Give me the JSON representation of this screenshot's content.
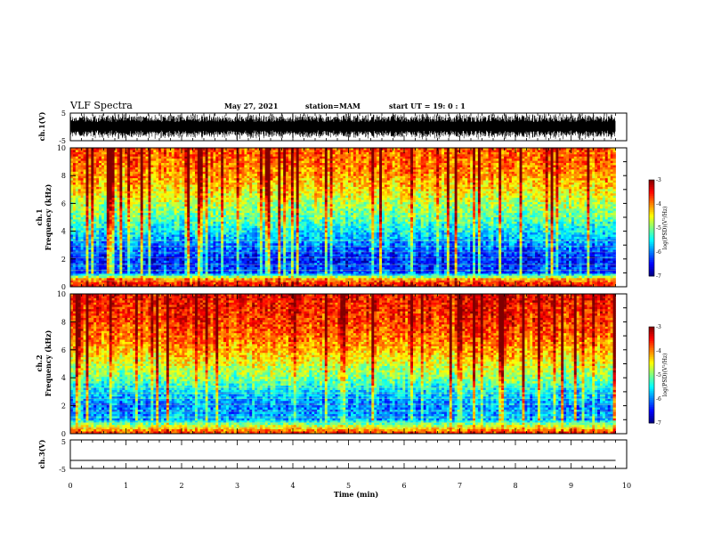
{
  "header": {
    "title": "VLF Spectra",
    "date": "May 27, 2021",
    "station": "station=MAM",
    "start": "start UT =  19: 0 : 1"
  },
  "chart_data": [
    {
      "type": "line",
      "panel": "ch1-waveform",
      "ylabel": "ch.1(V)",
      "ylim": [
        -5,
        5
      ],
      "yticks": [
        "5",
        "-5"
      ],
      "xlim": [
        0,
        10
      ],
      "signal": "dense noisy waveform, amplitude near saturation",
      "color": "#000000"
    },
    {
      "type": "heatmap",
      "panel": "ch1-spectrogram",
      "ylabel": [
        "ch.1",
        "Frequency (kHz)"
      ],
      "ylim": [
        0,
        10
      ],
      "yticks": [
        "0",
        "2",
        "4",
        "6",
        "8",
        "10"
      ],
      "xlim": [
        0,
        10
      ],
      "z_label": "log(PSD)(V²/Hz)",
      "z_range": [
        -7,
        -3
      ],
      "z_ticks": [
        "-3",
        "-4",
        "-5",
        "-6",
        "-7"
      ],
      "colormap": "jet",
      "profile_freq_khz": [
        0,
        0.5,
        1,
        2,
        3,
        4,
        5,
        6,
        7,
        8,
        9,
        10
      ],
      "profile_log_psd": [
        -3.4,
        -4.0,
        -6.2,
        -6.4,
        -6.0,
        -5.5,
        -5.1,
        -4.8,
        -4.4,
        -4.1,
        -3.9,
        -3.8
      ]
    },
    {
      "type": "heatmap",
      "panel": "ch2-spectrogram",
      "ylabel": [
        "ch.2",
        "Frequency (kHz)"
      ],
      "ylim": [
        0,
        10
      ],
      "yticks": [
        "0",
        "2",
        "4",
        "6",
        "8",
        "10"
      ],
      "xlim": [
        0,
        10
      ],
      "z_label": "log(PSD)(V²/Hz)",
      "z_range": [
        -7,
        -3
      ],
      "z_ticks": [
        "-3",
        "-4",
        "-5",
        "-6",
        "-7"
      ],
      "colormap": "jet",
      "profile_freq_khz": [
        0,
        0.5,
        1,
        2,
        3,
        4,
        5,
        6,
        7,
        8,
        9,
        10
      ],
      "profile_log_psd": [
        -3.6,
        -4.6,
        -5.8,
        -6.0,
        -5.6,
        -5.0,
        -4.6,
        -4.2,
        -3.9,
        -3.7,
        -3.6,
        -3.5
      ]
    },
    {
      "type": "line",
      "panel": "ch3-waveform",
      "ylabel": "ch.3(V)",
      "ylim": [
        -5,
        5
      ],
      "yticks": [
        "5",
        "-5"
      ],
      "xlim": [
        0,
        10
      ],
      "xlabel": "Time (min)",
      "xticks": [
        "0",
        "1",
        "2",
        "3",
        "4",
        "5",
        "6",
        "7",
        "8",
        "9",
        "10"
      ],
      "x": [
        0,
        9.8
      ],
      "y": [
        -2.2,
        -2.2
      ],
      "color": "#000000"
    }
  ]
}
